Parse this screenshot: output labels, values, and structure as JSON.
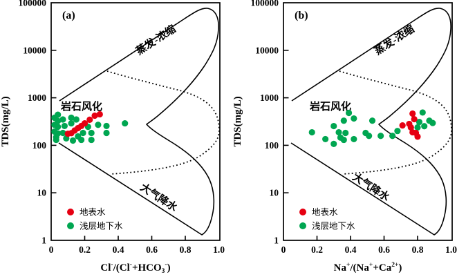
{
  "figure": {
    "background": "#ffffff",
    "axis_color": "#000000",
    "ylabel": "TDS(mg/L)",
    "y_tick_labels": [
      "100000",
      "10000",
      "1000",
      "100",
      "10",
      "1"
    ],
    "x_tick_labels": [
      "0",
      "0.2",
      "0.4",
      "0.6",
      "0.8",
      "1.0"
    ],
    "region_labels": {
      "evaporation": "蒸发-浓缩",
      "rock_weathering": "岩石风化",
      "precipitation": "大气降水"
    },
    "legend": [
      {
        "label": "地表水",
        "color": "#e60012"
      },
      {
        "label": "浅层地下水",
        "color": "#00a651"
      }
    ],
    "panels": [
      {
        "tag": "(a)",
        "xlabel_plain": "Cl-/(Cl-+HCO3-)",
        "xlabel_parts": [
          {
            "t": "Cl"
          },
          {
            "t": "-",
            "pos": "sup"
          },
          {
            "t": "/(Cl"
          },
          {
            "t": "-",
            "pos": "sup"
          },
          {
            "t": "+HCO"
          },
          {
            "t": "3",
            "pos": "sub"
          },
          {
            "t": "-",
            "pos": "sup"
          },
          {
            "t": ")"
          }
        ]
      },
      {
        "tag": "(b)",
        "xlabel_plain": "Na+/(Na++Ca2+)",
        "xlabel_parts": [
          {
            "t": "Na"
          },
          {
            "t": "+",
            "pos": "sup"
          },
          {
            "t": "/(Na"
          },
          {
            "t": "+",
            "pos": "sup"
          },
          {
            "t": "+Ca"
          },
          {
            "t": "2+",
            "pos": "sup"
          },
          {
            "t": ")"
          }
        ]
      }
    ]
  },
  "chart_data": [
    {
      "type": "scatter",
      "title": "(a)",
      "xlabel": "Cl-/(Cl-+HCO3-)",
      "ylabel": "TDS(mg/L)",
      "x_scale": "linear",
      "y_scale": "log",
      "xlim": [
        0,
        1.0
      ],
      "ylim": [
        1,
        100000
      ],
      "x_ticks": [
        0,
        0.2,
        0.4,
        0.6,
        0.8,
        1.0
      ],
      "y_ticks": [
        1,
        10,
        100,
        1000,
        10000,
        100000
      ],
      "grid": false,
      "legend_position": "lower-left",
      "annotations": [
        "蒸发-浓缩",
        "岩石风化",
        "大气降水"
      ],
      "series": [
        {
          "name": "地表水",
          "color": "#e60012",
          "points": [
            [
              0.1,
              175
            ],
            [
              0.12,
              180
            ],
            [
              0.14,
              205
            ],
            [
              0.16,
              230
            ],
            [
              0.18,
              255
            ],
            [
              0.2,
              290
            ],
            [
              0.23,
              345
            ],
            [
              0.26,
              420
            ],
            [
              0.29,
              450
            ]
          ]
        },
        {
          "name": "浅层地下水",
          "color": "#00a651",
          "points": [
            [
              0.02,
              380
            ],
            [
              0.02,
              270
            ],
            [
              0.02,
              195
            ],
            [
              0.03,
              148
            ],
            [
              0.03,
              130
            ],
            [
              0.04,
              440
            ],
            [
              0.04,
              325
            ],
            [
              0.04,
              245
            ],
            [
              0.04,
              178
            ],
            [
              0.07,
              350
            ],
            [
              0.07,
              182
            ],
            [
              0.08,
              255
            ],
            [
              0.09,
              140
            ],
            [
              0.12,
              380
            ],
            [
              0.12,
              290
            ],
            [
              0.13,
              126
            ],
            [
              0.15,
              350
            ],
            [
              0.16,
              154
            ],
            [
              0.18,
              130
            ],
            [
              0.19,
              182
            ],
            [
              0.22,
              245
            ],
            [
              0.24,
              182
            ],
            [
              0.24,
              130
            ],
            [
              0.28,
              270
            ],
            [
              0.33,
              255
            ],
            [
              0.33,
              182
            ],
            [
              0.44,
              290
            ]
          ]
        }
      ]
    },
    {
      "type": "scatter",
      "title": "(b)",
      "xlabel": "Na+/(Na++Ca2+)",
      "ylabel": "TDS(mg/L)",
      "x_scale": "linear",
      "y_scale": "log",
      "xlim": [
        0,
        1.0
      ],
      "ylim": [
        1,
        100000
      ],
      "x_ticks": [
        0,
        0.2,
        0.4,
        0.6,
        0.8,
        1.0
      ],
      "y_ticks": [
        1,
        10,
        100,
        1000,
        10000,
        100000
      ],
      "grid": false,
      "legend_position": "lower-left",
      "annotations": [
        "蒸发-浓缩",
        "岩石风化",
        "大气降水"
      ],
      "series": [
        {
          "name": "地表水",
          "color": "#e60012",
          "points": [
            [
              0.71,
              262
            ],
            [
              0.75,
              282
            ],
            [
              0.76,
              238
            ],
            [
              0.77,
              465
            ],
            [
              0.77,
              188
            ],
            [
              0.78,
              355
            ],
            [
              0.79,
              182
            ],
            [
              0.8,
              152
            ]
          ]
        },
        {
          "name": "浅层地下水",
          "color": "#00a651",
          "points": [
            [
              0.17,
              188
            ],
            [
              0.25,
              135
            ],
            [
              0.3,
              107
            ],
            [
              0.3,
              254
            ],
            [
              0.33,
              188
            ],
            [
              0.34,
              145
            ],
            [
              0.36,
              330
            ],
            [
              0.36,
              130
            ],
            [
              0.37,
              182
            ],
            [
              0.39,
              480
            ],
            [
              0.42,
              367
            ],
            [
              0.42,
              135
            ],
            [
              0.49,
              182
            ],
            [
              0.51,
              158
            ],
            [
              0.53,
              330
            ],
            [
              0.58,
              158
            ],
            [
              0.65,
              158
            ],
            [
              0.68,
              200
            ],
            [
              0.8,
              238
            ],
            [
              0.81,
              310
            ],
            [
              0.83,
              490
            ],
            [
              0.84,
              252
            ],
            [
              0.87,
              330
            ],
            [
              0.89,
              295
            ]
          ]
        }
      ]
    }
  ]
}
